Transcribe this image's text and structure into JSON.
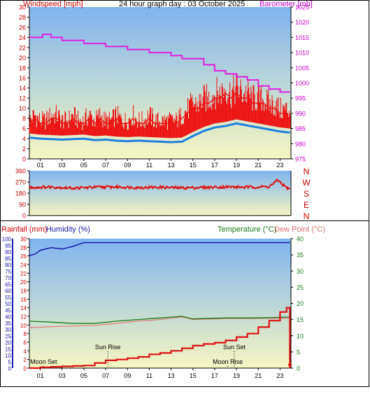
{
  "header": {
    "left_title": "Windspeed [mph]",
    "center_title": "24 hour graph day : 03 October 2025",
    "right_title": "Barometer [mb]"
  },
  "colors": {
    "wind": "#ee1111",
    "wind_avg": "#1e7fe0",
    "barometer": "#e020e0",
    "direction": "#dd1111",
    "rain": "#dd1111",
    "humidity": "#1a1aaa",
    "temperature": "#1a7a1a",
    "dewpoint": "#e08080",
    "left_axis_red": "#cc0000",
    "plot_top": "#7fb4f0",
    "plot_bottom": "#f6f6c0"
  },
  "x_ticks": [
    "01",
    "03",
    "05",
    "07",
    "09",
    "11",
    "13",
    "15",
    "17",
    "19",
    "21",
    "23"
  ],
  "chart_data": [
    {
      "type": "line",
      "title": "24 hour graph day : 03 October 2025",
      "ylabel": "Windspeed [mph]",
      "y2label": "Barometer [mb]",
      "ylim": [
        0,
        30
      ],
      "y2lim": [
        975,
        1025
      ],
      "y_ticks": [
        "0",
        "2",
        "4",
        "6",
        "8",
        "10",
        "12",
        "14",
        "16",
        "18",
        "20",
        "22",
        "24",
        "26",
        "28",
        "30"
      ],
      "y2_ticks": [
        "975",
        "980",
        "985",
        "990",
        "995",
        "1000",
        "1005",
        "1010",
        "1015",
        "1020",
        "1025"
      ],
      "series": [
        {
          "name": "Windspeed [mph]",
          "x": [
            0,
            0.5,
            1,
            1.5,
            2,
            2.5,
            3,
            3.5,
            4,
            4.5,
            5,
            5.5,
            6,
            6.5,
            7,
            7.5,
            8,
            8.5,
            9,
            9.5,
            10,
            10.5,
            11,
            11.5,
            12,
            12.5,
            13,
            13.5,
            14,
            14.5,
            15,
            15.5,
            16,
            16.5,
            17,
            17.5,
            18,
            18.5,
            19,
            19.5,
            20,
            20.5,
            21,
            21.5,
            22,
            22.5,
            23,
            23.5
          ],
          "values": [
            7,
            8,
            7,
            7,
            8,
            8,
            7,
            7,
            8,
            7,
            7,
            8,
            7,
            8,
            7,
            7,
            8,
            7,
            7,
            8,
            7,
            7,
            8,
            7,
            7,
            7,
            7,
            7,
            8,
            9,
            10,
            10,
            11,
            11,
            12,
            12,
            13,
            12,
            13,
            12,
            12,
            11,
            11,
            11,
            10,
            10,
            9,
            9
          ]
        },
        {
          "name": "Windspeed [mph] average",
          "x": [
            0,
            1,
            2,
            3,
            4,
            5,
            6,
            7,
            8,
            9,
            10,
            11,
            12,
            13,
            14,
            15,
            16,
            17,
            18,
            19,
            20,
            21,
            22,
            23,
            23.9
          ],
          "values": [
            4.2,
            4.0,
            3.9,
            3.8,
            3.9,
            4.0,
            3.7,
            3.8,
            3.6,
            3.5,
            3.6,
            3.5,
            3.4,
            3.3,
            3.4,
            4.5,
            5.5,
            6.2,
            6.5,
            7.0,
            6.6,
            6.2,
            5.8,
            5.4,
            5.2
          ]
        },
        {
          "name": "Barometer [mb]",
          "x": [
            0,
            0.8,
            1.2,
            2.0,
            3.0,
            4.0,
            5.0,
            6.0,
            7.0,
            8.0,
            9.0,
            10.0,
            11.0,
            12.0,
            13.0,
            14.0,
            15.0,
            16.0,
            17.0,
            18.0,
            19.0,
            20.0,
            21.0,
            22.0,
            23.0,
            23.9
          ],
          "values": [
            1015,
            1015,
            1016,
            1015,
            1014,
            1014,
            1013,
            1013,
            1012,
            1012,
            1011,
            1011,
            1010,
            1010,
            1009,
            1008,
            1008,
            1006,
            1004,
            1003,
            1002,
            1001,
            999,
            998,
            997,
            997
          ]
        }
      ]
    },
    {
      "type": "line",
      "ylabel": "Wind direction",
      "ylim": [
        0,
        360
      ],
      "y_ticks": [
        "0",
        "90",
        "180",
        "270",
        "360"
      ],
      "right_labels": [
        "N",
        "W",
        "S",
        "E",
        "N"
      ],
      "series": [
        {
          "name": "Wind direction",
          "x": [
            0,
            2,
            4,
            6,
            8,
            10,
            12,
            14,
            16,
            18,
            20,
            22,
            22.8,
            23.5,
            23.9
          ],
          "values": [
            225,
            230,
            220,
            228,
            230,
            225,
            228,
            222,
            226,
            230,
            228,
            232,
            285,
            230,
            210
          ]
        }
      ]
    },
    {
      "type": "line",
      "ylabel": "Rainfall (mm)",
      "y_title_2": "Humidity (%)",
      "y2label": "Temperature (°C)",
      "y2_title_2": "Dew Point (°C)",
      "ylim": [
        0,
        30
      ],
      "y2lim": [
        0,
        40
      ],
      "y_ticks": [
        "0",
        "2",
        "4",
        "6",
        "8",
        "10",
        "12",
        "14",
        "16",
        "18",
        "20",
        "22",
        "24",
        "26",
        "28",
        "30"
      ],
      "humidity_ticks": [
        "0",
        "5",
        "10",
        "15",
        "20",
        "25",
        "30",
        "35",
        "40",
        "45",
        "50",
        "55",
        "60",
        "65",
        "70",
        "75",
        "80",
        "85",
        "90",
        "95",
        "100"
      ],
      "y2_ticks": [
        "0",
        "5",
        "10",
        "15",
        "20",
        "25",
        "30",
        "35",
        "40"
      ],
      "events": [
        {
          "label": "Moon Set",
          "hour": 1.3,
          "row": "low"
        },
        {
          "label": "Sun Rise",
          "hour": 7.2,
          "row": "high"
        },
        {
          "label": "Moon Rise",
          "hour": 18.2,
          "row": "low"
        },
        {
          "label": "Sun Set",
          "hour": 18.8,
          "row": "high"
        }
      ],
      "series": [
        {
          "name": "Humidity (%)",
          "x": [
            0,
            0.5,
            1,
            2,
            3,
            4,
            5,
            6,
            8,
            10,
            12,
            14,
            16,
            18,
            20,
            22,
            23.9
          ],
          "values": [
            87,
            88,
            91,
            93,
            92,
            94,
            97,
            97,
            97,
            97,
            97,
            97,
            97,
            97,
            97,
            97,
            97
          ]
        },
        {
          "name": "Temperature (°C)",
          "x": [
            0,
            2,
            4,
            6,
            8,
            10,
            12,
            14,
            15,
            16,
            18,
            20,
            22,
            23.9
          ],
          "values": [
            14.5,
            14.2,
            13.8,
            13.8,
            14.5,
            15.0,
            15.5,
            16.0,
            15.2,
            15.3,
            15.5,
            15.5,
            15.6,
            15.8
          ]
        },
        {
          "name": "Dew Point (°C)",
          "x": [
            0,
            2,
            4,
            6,
            8,
            10,
            12,
            14,
            15,
            16,
            18,
            20,
            22,
            23.9
          ],
          "values": [
            12.5,
            12.8,
            13.0,
            13.2,
            13.8,
            14.5,
            15.0,
            15.8,
            15.0,
            15.1,
            15.3,
            15.3,
            15.4,
            15.4
          ]
        },
        {
          "name": "Rainfall (mm)",
          "x": [
            0,
            1,
            2,
            3,
            4,
            5,
            6,
            7,
            8,
            9,
            10,
            11,
            12,
            13,
            14,
            15,
            16,
            17,
            18,
            19,
            20,
            21,
            22,
            23,
            23.6,
            23.9
          ],
          "values": [
            0.0,
            0.2,
            0.3,
            0.4,
            0.5,
            0.6,
            1.2,
            1.8,
            2.0,
            2.3,
            2.6,
            3.2,
            3.5,
            4.0,
            4.6,
            5.2,
            5.6,
            5.9,
            6.4,
            7.2,
            8.0,
            9.5,
            11.0,
            13.0,
            14.0,
            0.0
          ]
        }
      ]
    }
  ]
}
